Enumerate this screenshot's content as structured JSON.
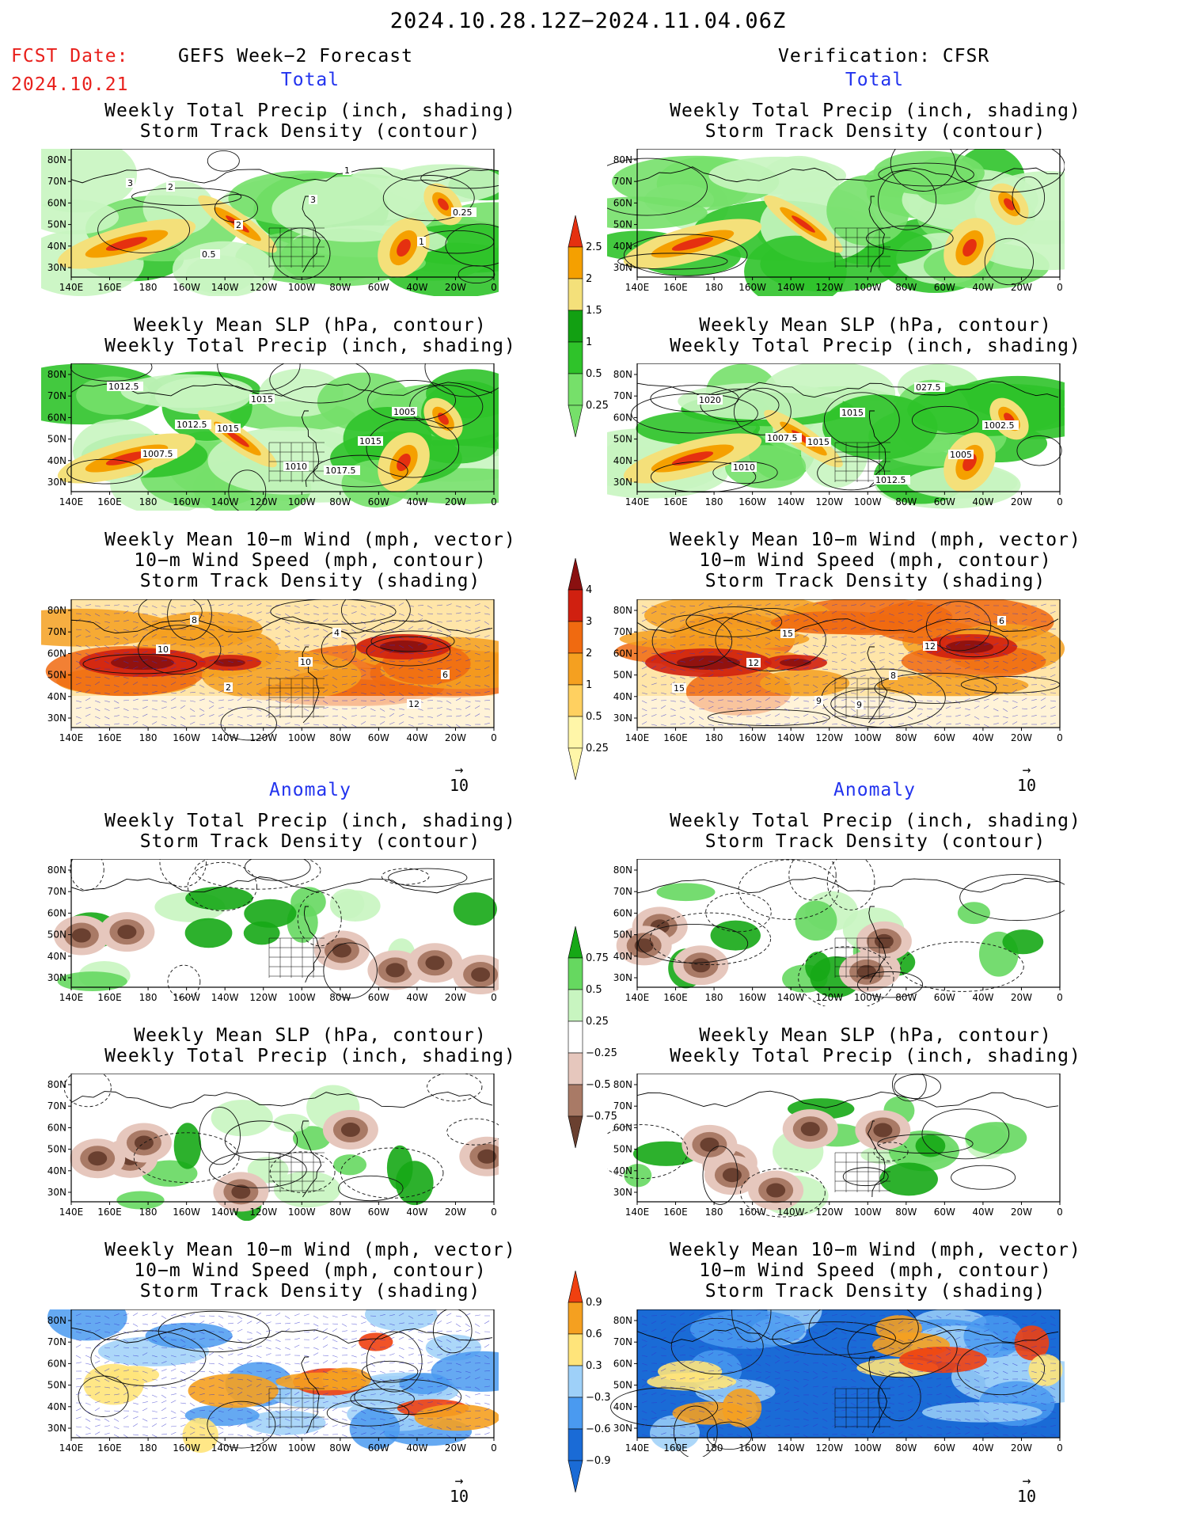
{
  "header": {
    "date_range": "2024.10.28.12Z−2024.11.04.06Z",
    "fcst_label": "FCST Date:",
    "fcst_date": "2024.10.21",
    "left_title": "GEFS Week−2 Forecast",
    "right_title": "Verification: CFSR"
  },
  "sections": {
    "total": "Total",
    "anomaly": "Anomaly"
  },
  "panel_titles": {
    "precip_storm": [
      "Weekly Total Precip (inch, shading)",
      "Storm Track Density (contour)"
    ],
    "slp_precip": [
      "Weekly Mean SLP (hPa, contour)",
      "Weekly Total Precip (inch, shading)"
    ],
    "wind_storm": [
      "Weekly Mean 10−m Wind (mph, vector)",
      "10−m Wind Speed (mph, contour)",
      "Storm Track Density (shading)"
    ]
  },
  "axes": {
    "lon_labels": [
      "140E",
      "160E",
      "180",
      "160W",
      "140W",
      "120W",
      "100W",
      "80W",
      "60W",
      "40W",
      "20W",
      "0"
    ],
    "lat_labels": [
      "80N",
      "70N",
      "60N",
      "50N",
      "40N",
      "30N"
    ]
  },
  "colorbars": {
    "precip_total": [
      "2.5",
      "2",
      "1.5",
      "1",
      "0.5",
      "0.25"
    ],
    "storm_total": [
      "4",
      "3",
      "2",
      "1",
      "0.5",
      "0.25"
    ],
    "precip_anom": [
      "0.75",
      "0.5",
      "0.25",
      "−0.25",
      "−0.5",
      "−0.75"
    ],
    "storm_anom": [
      "0.9",
      "0.6",
      "0.3",
      "−0.3",
      "−0.6",
      "−0.9"
    ]
  },
  "vector_scale": "10",
  "contour_labels": {
    "f_precip_total": [
      "3",
      "2",
      "1",
      "0.25",
      "0.5",
      "3",
      "1",
      "2"
    ],
    "f_slp_total": [
      "1012.5",
      "1010",
      "1005",
      "1007.5",
      "1015",
      "1015",
      "1012.5",
      "1015",
      "1017.5"
    ],
    "v_slp_total": [
      "1007.5",
      "1012.5",
      "1002.5",
      "1010",
      "1015",
      "1005",
      "1020",
      "1015",
      "027.5"
    ],
    "f_wind_total": [
      "2",
      "4",
      "6",
      "8",
      "10",
      "12",
      "10"
    ],
    "v_wind_total": [
      "9",
      "12",
      "15",
      "15",
      "8",
      "6",
      "12",
      "9"
    ]
  },
  "colors": {
    "precip": [
      "#c8f5c0",
      "#76e06a",
      "#2fc32a",
      "#12a012",
      "#f4e07a",
      "#f5a000",
      "#e53010"
    ],
    "storm": [
      "#fff6a8",
      "#ffd060",
      "#f5a020",
      "#f06a10",
      "#d02010",
      "#8a1010"
    ],
    "anom_pos": [
      "#c8f5c0",
      "#66d860",
      "#16a816"
    ],
    "anom_neg": [
      "#e6c7bd",
      "#a97a66",
      "#6a4030"
    ],
    "storm_anom": [
      "#1a6bd6",
      "#4a9af0",
      "#9ed0f8",
      "#ffe47a",
      "#f5a020",
      "#f04010"
    ]
  }
}
